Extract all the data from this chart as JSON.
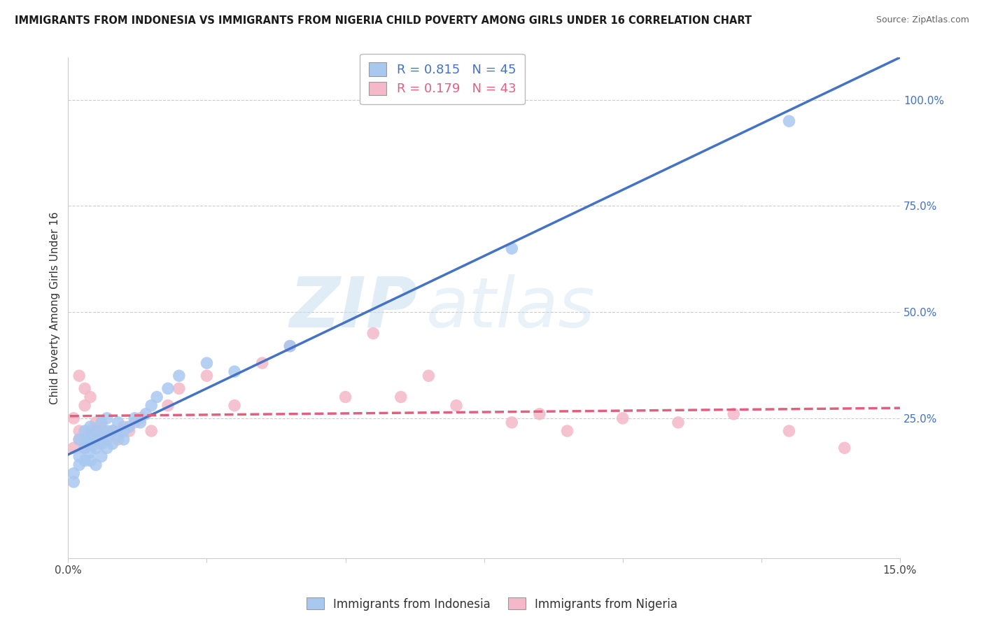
{
  "title": "IMMIGRANTS FROM INDONESIA VS IMMIGRANTS FROM NIGERIA CHILD POVERTY AMONG GIRLS UNDER 16 CORRELATION CHART",
  "source": "Source: ZipAtlas.com",
  "ylabel": "Child Poverty Among Girls Under 16",
  "xlim": [
    0.0,
    0.15
  ],
  "ylim": [
    -0.08,
    1.1
  ],
  "xticks": [
    0.0,
    0.025,
    0.05,
    0.075,
    0.1,
    0.125,
    0.15
  ],
  "xticklabels": [
    "0.0%",
    "",
    "",
    "",
    "",
    "",
    "15.0%"
  ],
  "yticks_right": [
    0.25,
    0.5,
    0.75,
    1.0
  ],
  "ytick_right_labels": [
    "25.0%",
    "50.0%",
    "75.0%",
    "100.0%"
  ],
  "indonesia_color": "#a8c8f0",
  "indonesia_line_color": "#4472c4",
  "nigeria_color": "#f4b8c8",
  "nigeria_line_color": "#e06080",
  "watermark_zip": "ZIP",
  "watermark_atlas": "atlas",
  "legend_R_indonesia": "R = 0.815",
  "legend_N_indonesia": "N = 45",
  "legend_R_nigeria": "R = 0.179",
  "legend_N_nigeria": "N = 43",
  "indonesia_scatter_x": [
    0.001,
    0.001,
    0.002,
    0.002,
    0.002,
    0.003,
    0.003,
    0.003,
    0.003,
    0.004,
    0.004,
    0.004,
    0.004,
    0.004,
    0.005,
    0.005,
    0.005,
    0.005,
    0.006,
    0.006,
    0.006,
    0.006,
    0.007,
    0.007,
    0.007,
    0.007,
    0.008,
    0.008,
    0.009,
    0.009,
    0.01,
    0.01,
    0.011,
    0.012,
    0.013,
    0.014,
    0.015,
    0.016,
    0.018,
    0.02,
    0.025,
    0.03,
    0.04,
    0.08,
    0.13
  ],
  "indonesia_scatter_y": [
    0.1,
    0.12,
    0.14,
    0.16,
    0.2,
    0.15,
    0.18,
    0.2,
    0.22,
    0.17,
    0.19,
    0.21,
    0.23,
    0.15,
    0.18,
    0.22,
    0.2,
    0.14,
    0.19,
    0.21,
    0.24,
    0.16,
    0.2,
    0.22,
    0.25,
    0.18,
    0.19,
    0.22,
    0.21,
    0.24,
    0.22,
    0.2,
    0.23,
    0.25,
    0.24,
    0.26,
    0.28,
    0.3,
    0.32,
    0.35,
    0.38,
    0.36,
    0.42,
    0.65,
    0.95
  ],
  "nigeria_scatter_x": [
    0.001,
    0.001,
    0.002,
    0.002,
    0.002,
    0.003,
    0.003,
    0.003,
    0.004,
    0.004,
    0.004,
    0.005,
    0.005,
    0.005,
    0.006,
    0.006,
    0.007,
    0.008,
    0.009,
    0.01,
    0.011,
    0.012,
    0.013,
    0.015,
    0.018,
    0.02,
    0.025,
    0.03,
    0.035,
    0.04,
    0.05,
    0.055,
    0.06,
    0.065,
    0.07,
    0.08,
    0.085,
    0.09,
    0.1,
    0.11,
    0.12,
    0.13,
    0.14
  ],
  "nigeria_scatter_y": [
    0.18,
    0.25,
    0.2,
    0.22,
    0.35,
    0.18,
    0.28,
    0.32,
    0.2,
    0.22,
    0.3,
    0.19,
    0.22,
    0.24,
    0.2,
    0.23,
    0.21,
    0.22,
    0.2,
    0.23,
    0.22,
    0.24,
    0.25,
    0.22,
    0.28,
    0.32,
    0.35,
    0.28,
    0.38,
    0.42,
    0.3,
    0.45,
    0.3,
    0.35,
    0.28,
    0.24,
    0.26,
    0.22,
    0.25,
    0.24,
    0.26,
    0.22,
    0.18
  ]
}
